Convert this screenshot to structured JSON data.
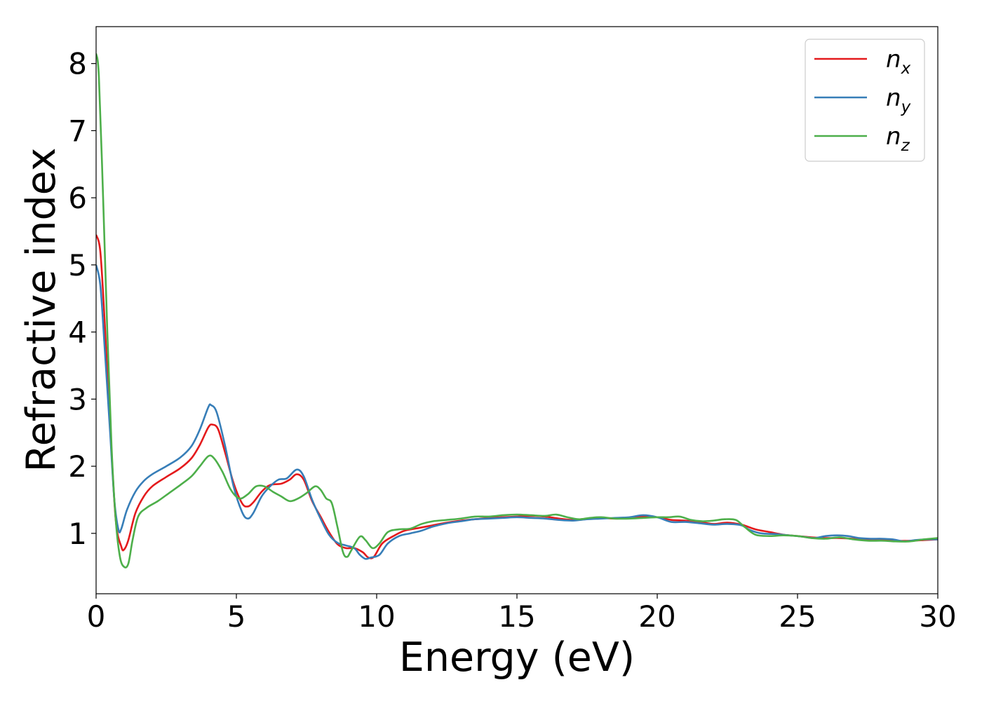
{
  "chart_data": {
    "type": "line",
    "xlabel": "Energy (eV)",
    "ylabel": "Refractive index",
    "xlim": [
      0,
      30
    ],
    "ylim": [
      0.1,
      8.55
    ],
    "xticks": [
      "0",
      "5",
      "10",
      "15",
      "20",
      "25",
      "30"
    ],
    "yticks": [
      "1",
      "2",
      "3",
      "4",
      "5",
      "6",
      "7",
      "8"
    ],
    "grid": false,
    "legend_position": "top-right",
    "series": [
      {
        "name": "n",
        "name_sub": "x",
        "color": "#e41a1c",
        "points": [
          [
            0,
            5.45
          ],
          [
            0.15,
            5.2
          ],
          [
            0.3,
            4.2
          ],
          [
            0.5,
            2.6
          ],
          [
            0.7,
            1.2
          ],
          [
            0.9,
            0.8
          ],
          [
            1.0,
            0.76
          ],
          [
            1.15,
            0.9
          ],
          [
            1.4,
            1.3
          ],
          [
            1.7,
            1.55
          ],
          [
            2.0,
            1.7
          ],
          [
            2.5,
            1.84
          ],
          [
            3.0,
            1.97
          ],
          [
            3.4,
            2.12
          ],
          [
            3.7,
            2.32
          ],
          [
            4.0,
            2.58
          ],
          [
            4.15,
            2.62
          ],
          [
            4.35,
            2.55
          ],
          [
            4.6,
            2.2
          ],
          [
            4.9,
            1.75
          ],
          [
            5.2,
            1.45
          ],
          [
            5.4,
            1.4
          ],
          [
            5.6,
            1.46
          ],
          [
            5.9,
            1.62
          ],
          [
            6.2,
            1.72
          ],
          [
            6.6,
            1.74
          ],
          [
            6.9,
            1.8
          ],
          [
            7.15,
            1.88
          ],
          [
            7.4,
            1.8
          ],
          [
            7.7,
            1.48
          ],
          [
            8.0,
            1.25
          ],
          [
            8.3,
            1.02
          ],
          [
            8.6,
            0.84
          ],
          [
            8.9,
            0.78
          ],
          [
            9.2,
            0.78
          ],
          [
            9.5,
            0.72
          ],
          [
            9.7,
            0.64
          ],
          [
            9.9,
            0.65
          ],
          [
            10.2,
            0.85
          ],
          [
            10.6,
            0.96
          ],
          [
            11.0,
            1.04
          ],
          [
            11.5,
            1.08
          ],
          [
            12.0,
            1.12
          ],
          [
            12.5,
            1.16
          ],
          [
            13.0,
            1.19
          ],
          [
            13.5,
            1.21
          ],
          [
            14.0,
            1.23
          ],
          [
            14.5,
            1.24
          ],
          [
            15.0,
            1.25
          ],
          [
            15.5,
            1.26
          ],
          [
            16.0,
            1.25
          ],
          [
            16.5,
            1.22
          ],
          [
            17.0,
            1.2
          ],
          [
            17.5,
            1.22
          ],
          [
            18.0,
            1.23
          ],
          [
            18.5,
            1.22
          ],
          [
            19.0,
            1.23
          ],
          [
            19.5,
            1.25
          ],
          [
            20.0,
            1.24
          ],
          [
            20.5,
            1.2
          ],
          [
            21.0,
            1.19
          ],
          [
            21.5,
            1.17
          ],
          [
            22.0,
            1.14
          ],
          [
            22.5,
            1.16
          ],
          [
            23.0,
            1.13
          ],
          [
            23.5,
            1.06
          ],
          [
            24.0,
            1.02
          ],
          [
            24.5,
            0.98
          ],
          [
            25.0,
            0.96
          ],
          [
            25.5,
            0.94
          ],
          [
            26.0,
            0.93
          ],
          [
            26.5,
            0.93
          ],
          [
            27.0,
            0.92
          ],
          [
            27.5,
            0.91
          ],
          [
            28.0,
            0.9
          ],
          [
            28.5,
            0.89
          ],
          [
            29.0,
            0.89
          ],
          [
            29.5,
            0.9
          ],
          [
            30.0,
            0.91
          ]
        ]
      },
      {
        "name": "n",
        "name_sub": "y",
        "color": "#377eb8",
        "points": [
          [
            0,
            5.0
          ],
          [
            0.15,
            4.7
          ],
          [
            0.3,
            3.8
          ],
          [
            0.5,
            2.5
          ],
          [
            0.65,
            1.5
          ],
          [
            0.8,
            1.05
          ],
          [
            0.9,
            1.07
          ],
          [
            1.1,
            1.35
          ],
          [
            1.4,
            1.62
          ],
          [
            1.7,
            1.78
          ],
          [
            2.0,
            1.88
          ],
          [
            2.5,
            2.0
          ],
          [
            3.0,
            2.13
          ],
          [
            3.4,
            2.3
          ],
          [
            3.7,
            2.55
          ],
          [
            4.0,
            2.88
          ],
          [
            4.1,
            2.91
          ],
          [
            4.3,
            2.8
          ],
          [
            4.6,
            2.3
          ],
          [
            4.9,
            1.7
          ],
          [
            5.2,
            1.32
          ],
          [
            5.4,
            1.22
          ],
          [
            5.6,
            1.3
          ],
          [
            5.9,
            1.55
          ],
          [
            6.2,
            1.7
          ],
          [
            6.5,
            1.8
          ],
          [
            6.8,
            1.82
          ],
          [
            7.15,
            1.95
          ],
          [
            7.4,
            1.85
          ],
          [
            7.7,
            1.5
          ],
          [
            8.0,
            1.22
          ],
          [
            8.3,
            0.98
          ],
          [
            8.6,
            0.86
          ],
          [
            8.9,
            0.82
          ],
          [
            9.2,
            0.78
          ],
          [
            9.4,
            0.68
          ],
          [
            9.6,
            0.62
          ],
          [
            9.8,
            0.64
          ],
          [
            10.1,
            0.68
          ],
          [
            10.4,
            0.85
          ],
          [
            10.8,
            0.96
          ],
          [
            11.2,
            1.0
          ],
          [
            11.6,
            1.04
          ],
          [
            12.0,
            1.1
          ],
          [
            12.5,
            1.15
          ],
          [
            13.0,
            1.18
          ],
          [
            13.5,
            1.21
          ],
          [
            14.0,
            1.22
          ],
          [
            14.5,
            1.23
          ],
          [
            15.0,
            1.24
          ],
          [
            15.5,
            1.23
          ],
          [
            16.0,
            1.22
          ],
          [
            16.5,
            1.2
          ],
          [
            17.0,
            1.19
          ],
          [
            17.5,
            1.21
          ],
          [
            18.0,
            1.22
          ],
          [
            18.5,
            1.23
          ],
          [
            19.0,
            1.24
          ],
          [
            19.5,
            1.27
          ],
          [
            20.0,
            1.24
          ],
          [
            20.5,
            1.17
          ],
          [
            21.0,
            1.17
          ],
          [
            21.5,
            1.15
          ],
          [
            22.0,
            1.13
          ],
          [
            22.5,
            1.14
          ],
          [
            23.0,
            1.12
          ],
          [
            23.3,
            1.05
          ],
          [
            23.7,
            1.0
          ],
          [
            24.2,
            0.99
          ],
          [
            24.7,
            0.97
          ],
          [
            25.2,
            0.95
          ],
          [
            25.6,
            0.93
          ],
          [
            26.0,
            0.96
          ],
          [
            26.4,
            0.97
          ],
          [
            26.8,
            0.96
          ],
          [
            27.2,
            0.93
          ],
          [
            27.6,
            0.92
          ],
          [
            28.0,
            0.92
          ],
          [
            28.4,
            0.91
          ],
          [
            28.8,
            0.88
          ],
          [
            29.2,
            0.9
          ],
          [
            29.6,
            0.91
          ],
          [
            30.0,
            0.91
          ]
        ]
      },
      {
        "name": "n",
        "name_sub": "z",
        "color": "#4daf4a",
        "points": [
          [
            0,
            8.15
          ],
          [
            0.1,
            7.8
          ],
          [
            0.25,
            6.0
          ],
          [
            0.4,
            4.0
          ],
          [
            0.55,
            2.3
          ],
          [
            0.7,
            1.2
          ],
          [
            0.85,
            0.65
          ],
          [
            1.0,
            0.5
          ],
          [
            1.15,
            0.55
          ],
          [
            1.3,
            0.9
          ],
          [
            1.5,
            1.25
          ],
          [
            1.8,
            1.38
          ],
          [
            2.2,
            1.48
          ],
          [
            2.6,
            1.6
          ],
          [
            3.0,
            1.72
          ],
          [
            3.4,
            1.85
          ],
          [
            3.7,
            2.0
          ],
          [
            4.0,
            2.15
          ],
          [
            4.2,
            2.12
          ],
          [
            4.5,
            1.92
          ],
          [
            4.8,
            1.65
          ],
          [
            5.1,
            1.52
          ],
          [
            5.4,
            1.58
          ],
          [
            5.7,
            1.7
          ],
          [
            6.0,
            1.7
          ],
          [
            6.3,
            1.62
          ],
          [
            6.6,
            1.55
          ],
          [
            6.9,
            1.48
          ],
          [
            7.2,
            1.52
          ],
          [
            7.5,
            1.6
          ],
          [
            7.8,
            1.7
          ],
          [
            8.0,
            1.65
          ],
          [
            8.2,
            1.52
          ],
          [
            8.4,
            1.45
          ],
          [
            8.6,
            1.1
          ],
          [
            8.8,
            0.72
          ],
          [
            8.95,
            0.65
          ],
          [
            9.1,
            0.75
          ],
          [
            9.4,
            0.95
          ],
          [
            9.6,
            0.9
          ],
          [
            9.85,
            0.78
          ],
          [
            10.1,
            0.85
          ],
          [
            10.4,
            1.02
          ],
          [
            10.8,
            1.06
          ],
          [
            11.2,
            1.07
          ],
          [
            11.6,
            1.14
          ],
          [
            12.0,
            1.18
          ],
          [
            12.5,
            1.2
          ],
          [
            13.0,
            1.22
          ],
          [
            13.5,
            1.25
          ],
          [
            14.0,
            1.25
          ],
          [
            14.5,
            1.27
          ],
          [
            15.0,
            1.28
          ],
          [
            15.5,
            1.27
          ],
          [
            16.0,
            1.26
          ],
          [
            16.4,
            1.28
          ],
          [
            16.8,
            1.24
          ],
          [
            17.2,
            1.21
          ],
          [
            17.6,
            1.23
          ],
          [
            18.0,
            1.24
          ],
          [
            18.5,
            1.22
          ],
          [
            19.0,
            1.22
          ],
          [
            19.5,
            1.23
          ],
          [
            20.0,
            1.24
          ],
          [
            20.4,
            1.24
          ],
          [
            20.8,
            1.25
          ],
          [
            21.2,
            1.2
          ],
          [
            21.6,
            1.18
          ],
          [
            22.0,
            1.19
          ],
          [
            22.4,
            1.21
          ],
          [
            22.8,
            1.2
          ],
          [
            23.1,
            1.1
          ],
          [
            23.5,
            0.98
          ],
          [
            24.0,
            0.96
          ],
          [
            24.5,
            0.97
          ],
          [
            25.0,
            0.96
          ],
          [
            25.5,
            0.93
          ],
          [
            26.0,
            0.92
          ],
          [
            26.5,
            0.94
          ],
          [
            27.0,
            0.91
          ],
          [
            27.5,
            0.89
          ],
          [
            28.0,
            0.89
          ],
          [
            28.5,
            0.88
          ],
          [
            29.0,
            0.88
          ],
          [
            29.5,
            0.91
          ],
          [
            30.0,
            0.93
          ]
        ]
      }
    ]
  }
}
